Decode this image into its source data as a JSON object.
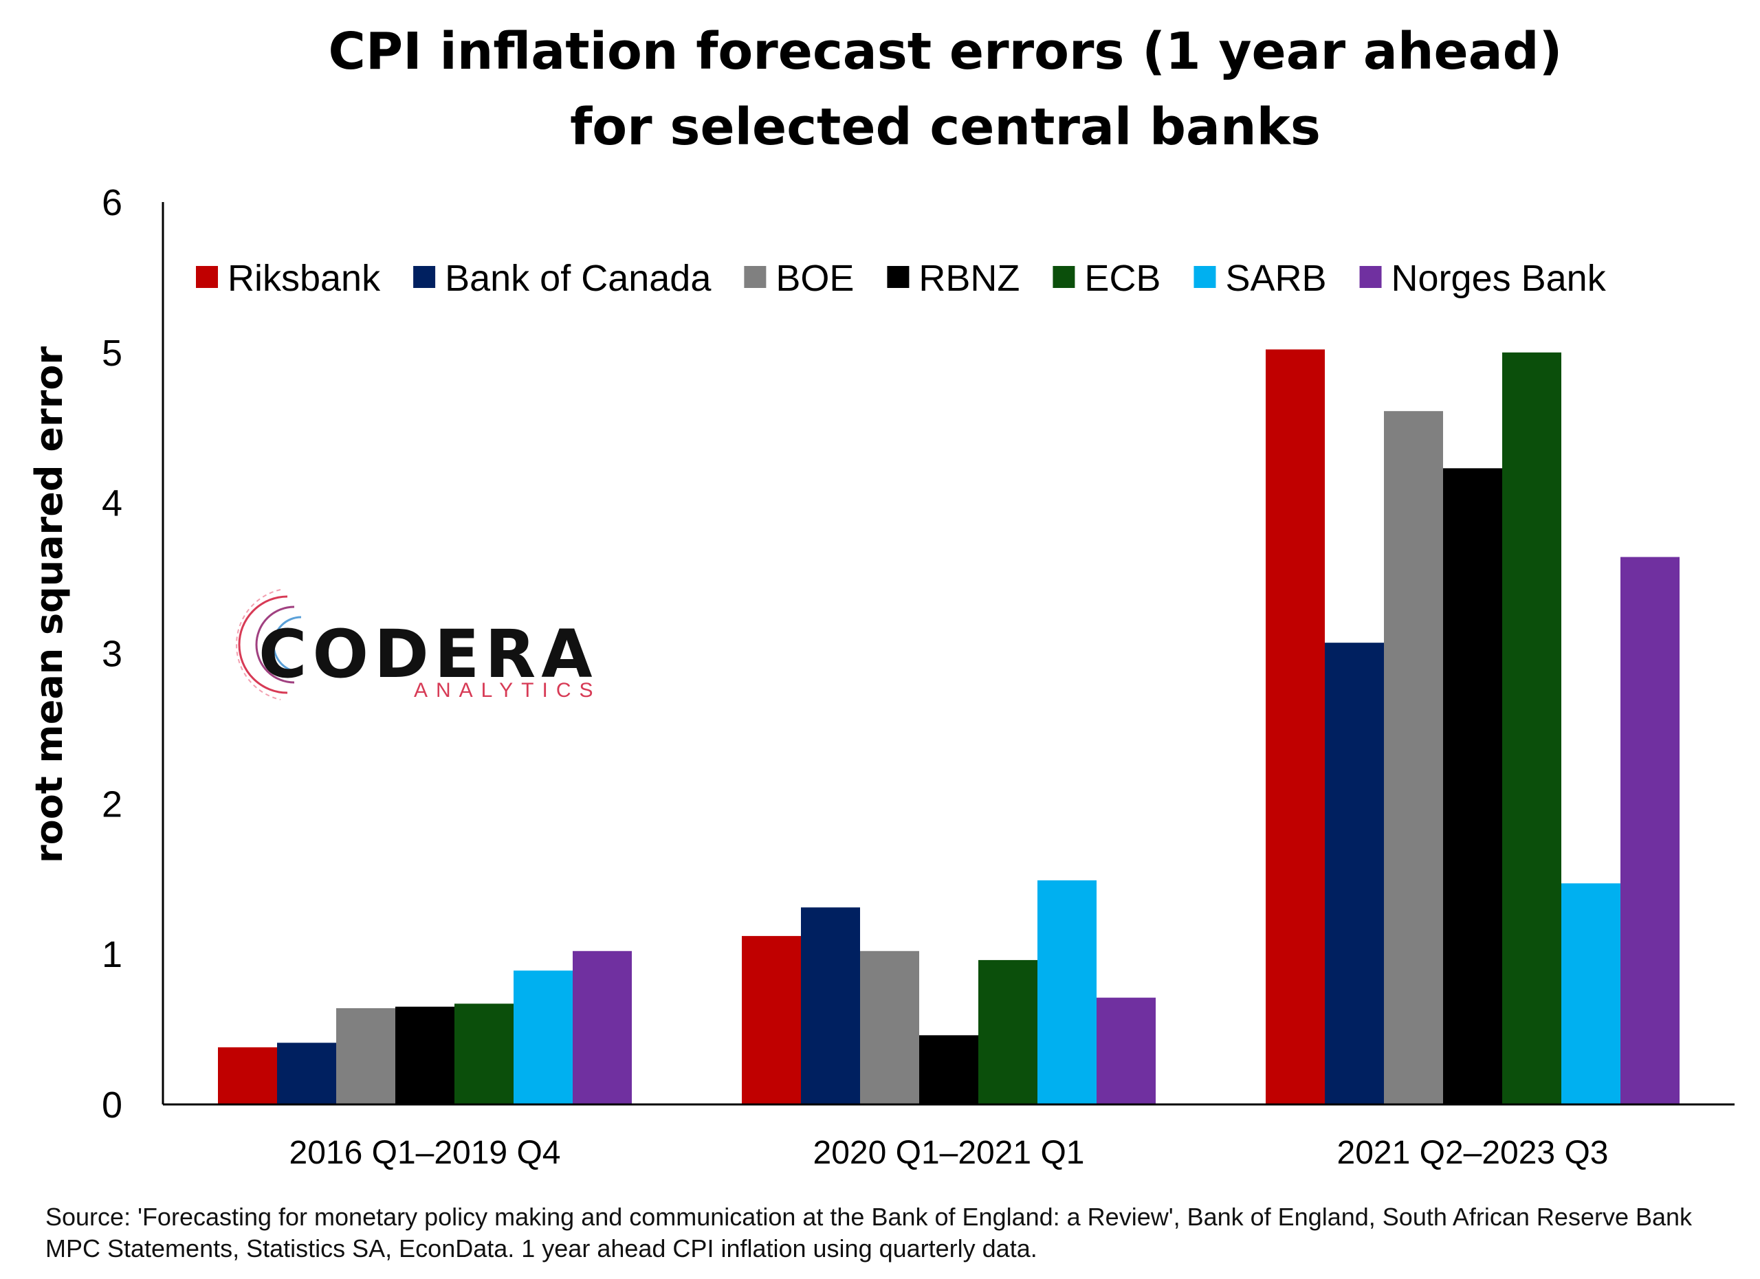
{
  "chart_data": {
    "type": "bar",
    "title_lines": [
      "CPI inflation forecast errors (1 year ahead)",
      "for selected central banks"
    ],
    "ylabel": "root mean squared error",
    "xlabel": "",
    "ylim": [
      0,
      6
    ],
    "yticks": [
      "0",
      "1",
      "2",
      "3",
      "4",
      "5",
      "6"
    ],
    "categories": [
      "2016 Q1–2019 Q4",
      "2020 Q1–2021 Q1",
      "2021 Q2–2023 Q3"
    ],
    "legend_position": "top",
    "grid": false,
    "series": [
      {
        "name": "Riksbank",
        "color": "#c00000",
        "values": [
          0.38,
          1.12,
          5.02
        ]
      },
      {
        "name": "Bank of Canada",
        "color": "#002060",
        "values": [
          0.41,
          1.31,
          3.07
        ]
      },
      {
        "name": "BOE",
        "color": "#808080",
        "values": [
          0.64,
          1.02,
          4.61
        ]
      },
      {
        "name": "RBNZ",
        "color": "#000000",
        "values": [
          0.65,
          0.46,
          4.23
        ]
      },
      {
        "name": "ECB",
        "color": "#0b4f0b",
        "values": [
          0.67,
          0.96,
          5.0
        ]
      },
      {
        "name": "SARB",
        "color": "#00b0f0",
        "values": [
          0.89,
          1.49,
          1.47
        ]
      },
      {
        "name": "Norges Bank",
        "color": "#7030a0",
        "values": [
          1.02,
          0.71,
          3.64
        ]
      }
    ]
  },
  "source_text": "Source: 'Forecasting for monetary policy making and communication at the Bank of England: a Review', Bank of England, South African Reserve Bank MPC Statements, Statistics SA, EconData. 1 year ahead CPI inflation using quarterly data.",
  "logo": {
    "word": "CODERA",
    "sub": "ANALYTICS"
  }
}
